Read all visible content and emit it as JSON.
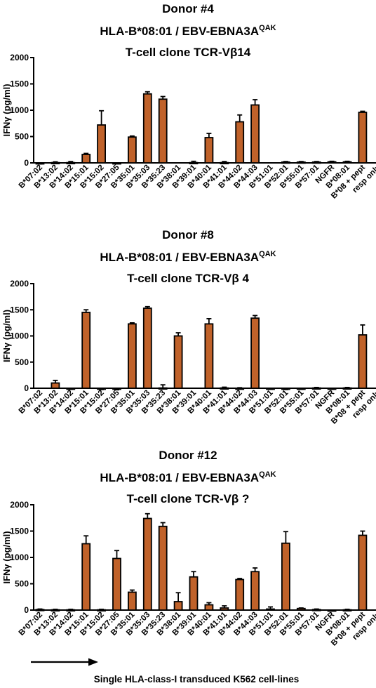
{
  "colors": {
    "bar": "#c0622a",
    "bar_edge": "#000000"
  },
  "categories": [
    "B*07:02",
    "B*13:02",
    "B*14:02",
    "B*15:01",
    "B*15:02",
    "B*27:05",
    "B*35:01",
    "B*35:03",
    "B*35:23",
    "B*38:01",
    "B*39:01",
    "B*40:01",
    "B*41:01",
    "B*44:02",
    "B*44:03",
    "B*51:01",
    "B*52:01",
    "B*55:01",
    "B*57:01",
    "NGFR",
    "B*08:01",
    "B*08 + pept",
    "resp only"
  ],
  "footer_label": "Single HLA-class-I transduced K562 cell-lines",
  "chart_data": [
    {
      "type": "bar",
      "title_lines": [
        "Donor #4",
        "HLA-B*08:01 / EBV-EBNA3A",
        "T-cell clone TCR-Vβ14"
      ],
      "title_superscript": "QAK",
      "ylabel": "IFNγ  (pg/ml)",
      "ylim": [
        0,
        2000
      ],
      "yticks": [
        0,
        500,
        1000,
        1500,
        2000
      ],
      "categories": [
        "B*07:02",
        "B*13:02",
        "B*14:02",
        "B*15:01",
        "B*15:02",
        "B*27:05",
        "B*35:01",
        "B*35:03",
        "B*35:23",
        "B*38:01",
        "B*39:01",
        "B*40:01",
        "B*41:01",
        "B*44:02",
        "B*44:03",
        "B*51:01",
        "B*52:01",
        "B*55:01",
        "B*57:01",
        "NGFR",
        "B*08:01",
        "B*08 + pept",
        "resp only"
      ],
      "values": [
        -15,
        5,
        5,
        160,
        720,
        -10,
        490,
        1310,
        1210,
        0,
        5,
        480,
        5,
        780,
        1100,
        0,
        15,
        15,
        15,
        20,
        20,
        960,
        0
      ],
      "errors": [
        5,
        15,
        20,
        20,
        270,
        5,
        20,
        40,
        50,
        0,
        25,
        80,
        20,
        130,
        100,
        0,
        10,
        10,
        10,
        10,
        10,
        20,
        0
      ]
    },
    {
      "type": "bar",
      "title_lines": [
        "Donor #8",
        "HLA-B*08:01 / EBV-EBNA3A",
        "T-cell clone TCR-Vβ 4"
      ],
      "title_superscript": "QAK",
      "ylabel": "IFNγ  (pg/ml)",
      "ylim": [
        0,
        2000
      ],
      "yticks": [
        0,
        500,
        1000,
        1500,
        2000
      ],
      "categories": [
        "B*07:02",
        "B*13:02",
        "B*14:02",
        "B*15:01",
        "B*15:02",
        "B*27:05",
        "B*35:01",
        "B*35:03",
        "B*35:23",
        "B*38:01",
        "B*39:01",
        "B*40:01",
        "B*41:01",
        "B*44:02",
        "B*44:03",
        "B*51:01",
        "B*52:01",
        "B*55:01",
        "B*57:01",
        "NGFR",
        "B*08:01",
        "B*08 + pept",
        "resp only"
      ],
      "values": [
        0,
        100,
        -5,
        1450,
        -5,
        -5,
        1230,
        1530,
        5,
        1000,
        0,
        1230,
        5,
        0,
        1340,
        -5,
        -5,
        -5,
        5,
        -5,
        5,
        1020,
        0
      ],
      "errors": [
        0,
        50,
        15,
        50,
        20,
        25,
        20,
        30,
        60,
        60,
        0,
        100,
        15,
        10,
        50,
        15,
        20,
        15,
        10,
        15,
        10,
        190,
        0
      ]
    },
    {
      "type": "bar",
      "title_lines": [
        "Donor #12",
        "HLA-B*08:01 / EBV-EBNA3A",
        "T-cell clone TCR-Vβ ?"
      ],
      "title_superscript": "QAK",
      "ylabel": "IFNγ  (pg/ml)",
      "ylim": [
        0,
        2000
      ],
      "yticks": [
        0,
        500,
        1000,
        1500,
        2000
      ],
      "categories": [
        "B*07:02",
        "B*13:02",
        "B*14:02",
        "B*15:01",
        "B*15:02",
        "B*27:05",
        "B*35:01",
        "B*35:03",
        "B*35:23",
        "B*38:01",
        "B*39:01",
        "B*40:01",
        "B*41:01",
        "B*44:02",
        "B*44:03",
        "B*51:01",
        "B*52:01",
        "B*55:01",
        "B*57:01",
        "NGFR",
        "B*08:01",
        "B*08 + pept",
        "resp only"
      ],
      "values": [
        10,
        5,
        5,
        1260,
        5,
        980,
        340,
        1740,
        1590,
        160,
        630,
        100,
        40,
        580,
        730,
        20,
        1270,
        30,
        10,
        -5,
        5,
        1420,
        0
      ],
      "errors": [
        10,
        10,
        10,
        150,
        10,
        150,
        40,
        90,
        70,
        170,
        100,
        40,
        40,
        20,
        70,
        40,
        220,
        10,
        10,
        10,
        10,
        80,
        0
      ]
    }
  ]
}
